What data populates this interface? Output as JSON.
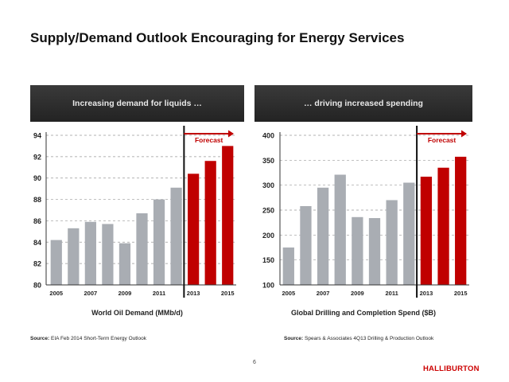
{
  "page": {
    "title": "Supply/Demand Outlook Encouraging for Energy Services",
    "page_number": "6",
    "logo_text": "HALLIBURTON"
  },
  "colors": {
    "historical_bar": "#a9adb3",
    "forecast_bar": "#c00000",
    "forecast_label": "#c00000",
    "header_bg": "#2b2b2b"
  },
  "left_panel": {
    "header": "Increasing demand for liquids …",
    "caption": "World Oil Demand (MMb/d)",
    "source_label": "Source:",
    "source_text": "EIA Feb 2014 Short-Term Energy Outlook"
  },
  "right_panel": {
    "header": "… driving increased spending",
    "caption": "Global Drilling and Completion Spend ($B)",
    "source_label": "Source:",
    "source_text": "Spears & Associates 4Q13 Drilling & Production Outlook"
  },
  "chart_data": [
    {
      "type": "bar",
      "title": "",
      "xlabel": "World Oil Demand (MMb/d)",
      "ylabel": "",
      "categories": [
        "2005",
        "2006",
        "2007",
        "2008",
        "2009",
        "2010",
        "2011",
        "2012",
        "2013",
        "2014",
        "2015"
      ],
      "x_tick_labels": [
        "2005",
        "2007",
        "2009",
        "2011",
        "2013",
        "2015"
      ],
      "values": [
        84.2,
        85.3,
        85.9,
        85.7,
        83.9,
        86.7,
        88.0,
        89.1,
        90.4,
        91.6,
        93.0
      ],
      "forecast_start": "2013",
      "annotation": "Forecast",
      "ylim": [
        80,
        94
      ],
      "yticks": [
        80,
        82,
        84,
        86,
        88,
        90,
        92,
        94
      ],
      "grid": true
    },
    {
      "type": "bar",
      "title": "",
      "xlabel": "Global Drilling and Completion Spend ($B)",
      "ylabel": "",
      "categories": [
        "2005",
        "2006",
        "2007",
        "2008",
        "2009",
        "2010",
        "2011",
        "2012",
        "2013",
        "2014",
        "2015"
      ],
      "x_tick_labels": [
        "2005",
        "2007",
        "2009",
        "2011",
        "2013",
        "2015"
      ],
      "values": [
        175,
        258,
        295,
        321,
        236,
        234,
        270,
        305,
        317,
        335,
        357
      ],
      "forecast_start": "2013",
      "annotation": "Forecast",
      "ylim": [
        100,
        400
      ],
      "yticks": [
        100,
        150,
        200,
        250,
        300,
        350,
        400
      ],
      "grid": true
    }
  ]
}
